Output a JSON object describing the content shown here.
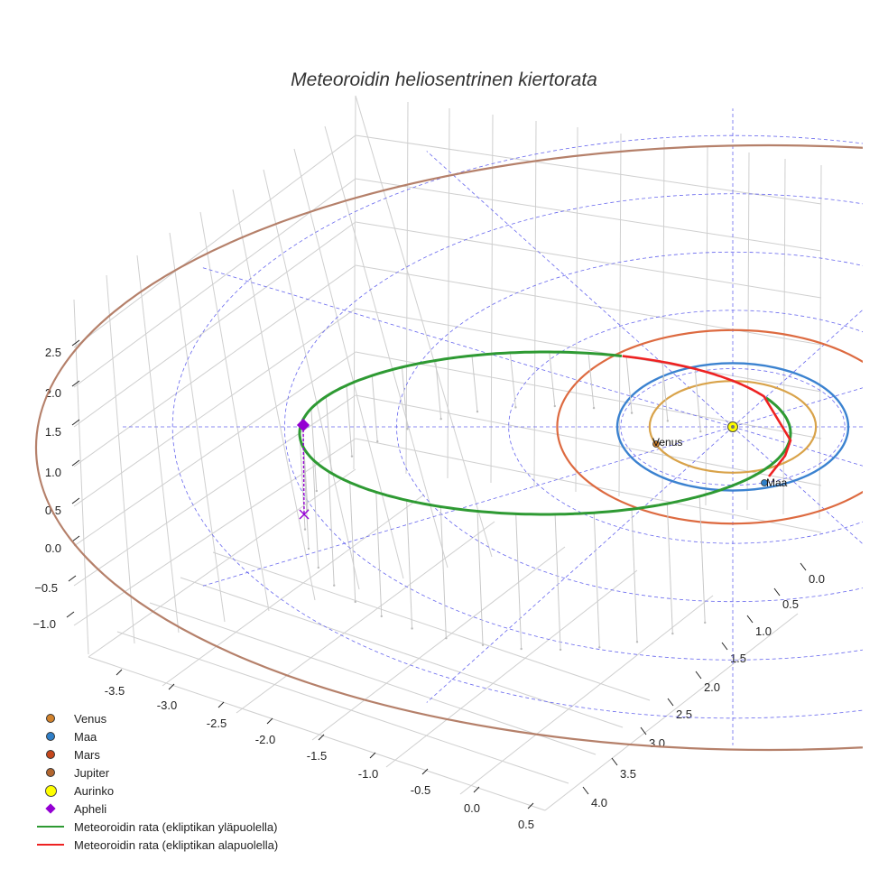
{
  "chart_data": {
    "type": "3d-line",
    "title": "Meteoroidin heliosentrinen kiertorata",
    "axes": {
      "x": {
        "ticks": [
          "-3.5",
          "-3.0",
          "-2.5",
          "-2.0",
          "-1.5",
          "-1.0",
          "-0.5",
          "0.0",
          "0.5"
        ],
        "range": [
          -3.7,
          0.6
        ]
      },
      "y": {
        "ticks": [
          "0.0",
          "0.5",
          "1.0",
          "1.5",
          "2.0",
          "2.5",
          "3.0",
          "3.5",
          "4.0"
        ],
        "range": [
          -0.1,
          4.1
        ]
      },
      "z": {
        "ticks": [
          "2.5",
          "2.0",
          "1.5",
          "1.0",
          "0.5",
          "0.0",
          "−0.5",
          "−1.0"
        ],
        "range": [
          -1.2,
          2.7
        ]
      }
    },
    "series": [
      {
        "name": "Meteoroidin rata (ekliptikan yläpuolella)",
        "color": "#2e9a33",
        "type": "orbit-above"
      },
      {
        "name": "Meteoroidin rata (ekliptikan alapuolella)",
        "color": "#ee2222",
        "type": "orbit-below"
      }
    ],
    "planets": [
      {
        "name": "Venus",
        "orbit_color": "#d9a34a",
        "dot_color": "#d2832d",
        "orbit_au": 0.72
      },
      {
        "name": "Maa",
        "orbit_color": "#3b82d0",
        "dot_color": "#2f7fc8",
        "orbit_au": 1.0
      },
      {
        "name": "Mars",
        "orbit_color": "#dd6a40",
        "dot_color": "#c5471c",
        "orbit_au": 1.52
      },
      {
        "name": "Jupiter",
        "orbit_color": "#b5806a",
        "dot_color": "#b3662e",
        "orbit_au": 5.2
      }
    ],
    "sun": {
      "name": "Aurinko",
      "color": "#ffff00"
    },
    "aphelion": {
      "name": "Apheli",
      "color": "#9400d3"
    },
    "grid_color": "#6666ee",
    "annotations": [
      "Venus",
      "Maa"
    ]
  },
  "legend": {
    "venus": "Venus",
    "maa": "Maa",
    "mars": "Mars",
    "jupiter": "Jupiter",
    "aurinko": "Aurinko",
    "apheli": "Apheli",
    "above": "Meteoroidin rata (ekliptikan yläpuolella)",
    "below": "Meteoroidin rata (ekliptikan alapuolella)"
  }
}
